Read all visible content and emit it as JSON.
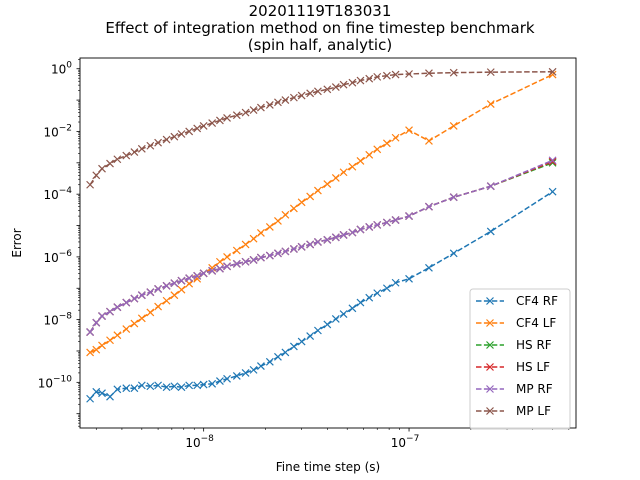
{
  "chart_data": {
    "type": "line",
    "title_lines": [
      "20201119T183031",
      "Effect of integration method on fine timestep benchmark",
      "(spin half, analytic)"
    ],
    "xlabel": "Fine time step (s)",
    "ylabel": "Error",
    "xscale": "log",
    "yscale": "log",
    "xlim": [
      2.5e-09,
      6.5e-07
    ],
    "ylim": [
      3.5e-12,
      2.2
    ],
    "x_major_ticks": [
      {
        "value": 1e-08,
        "base": "10",
        "exp": "−8"
      },
      {
        "value": 1e-07,
        "base": "10",
        "exp": "−7"
      }
    ],
    "y_major_ticks": [
      {
        "value": 1e-10,
        "base": "10",
        "exp": "−10"
      },
      {
        "value": 1e-08,
        "base": "10",
        "exp": "−8"
      },
      {
        "value": 1e-06,
        "base": "10",
        "exp": "−6"
      },
      {
        "value": 0.0001,
        "base": "10",
        "exp": "−4"
      },
      {
        "value": 0.01,
        "base": "10",
        "exp": "−2"
      },
      {
        "value": 1,
        "base": "10",
        "exp": "0"
      }
    ],
    "legend_position": "lower-right",
    "grid": false,
    "x": [
      2.8e-09,
      3e-09,
      3.2e-09,
      3.5e-09,
      3.8e-09,
      4.2e-09,
      4.6e-09,
      5e-09,
      5.5e-09,
      6e-09,
      6.6e-09,
      7.2e-09,
      7.8e-09,
      8.5e-09,
      9.3e-09,
      1e-08,
      1.1e-08,
      1.2e-08,
      1.3e-08,
      1.45e-08,
      1.6e-08,
      1.75e-08,
      1.9e-08,
      2.1e-08,
      2.3e-08,
      2.5e-08,
      2.75e-08,
      3e-08,
      3.3e-08,
      3.6e-08,
      4e-08,
      4.4e-08,
      4.8e-08,
      5.3e-08,
      5.8e-08,
      6.4e-08,
      7e-08,
      7.8e-08,
      8.6e-08,
      1e-07,
      1.25e-07,
      1.65e-07,
      2.5e-07,
      5e-07
    ],
    "series": [
      {
        "name": "CF4 RF",
        "color": "#1f77b4",
        "values": [
          3e-11,
          5e-11,
          4.5e-11,
          3.5e-11,
          6e-11,
          6.5e-11,
          6.5e-11,
          8e-11,
          7.5e-11,
          8e-11,
          7e-11,
          7.5e-11,
          7e-11,
          8e-11,
          8e-11,
          8.5e-11,
          9e-11,
          1.1e-10,
          1.3e-10,
          1.6e-10,
          2e-10,
          2.5e-10,
          3.3e-10,
          4.5e-10,
          6.5e-10,
          9e-10,
          1.4e-09,
          2e-09,
          3e-09,
          4.5e-09,
          7e-09,
          1.05e-08,
          1.5e-08,
          2.3e-08,
          3.5e-08,
          5e-08,
          7e-08,
          1e-07,
          1.5e-07,
          2e-07,
          4.5e-07,
          1.3e-06,
          6.5e-06,
          0.00012
        ]
      },
      {
        "name": "CF4 LF",
        "color": "#ff7f0e",
        "values": [
          9e-10,
          1.1e-09,
          1.5e-09,
          2.2e-09,
          3.2e-09,
          5e-09,
          7.5e-09,
          1.1e-08,
          1.7e-08,
          2.6e-08,
          4e-08,
          6e-08,
          9e-08,
          1.4e-07,
          2e-07,
          3e-07,
          4.5e-07,
          7e-07,
          1e-06,
          1.6e-06,
          2.5e-06,
          3.8e-06,
          5.8e-06,
          9e-06,
          1.4e-05,
          2.2e-05,
          3.5e-05,
          5.5e-05,
          8.5e-05,
          0.00013,
          0.00021,
          0.00033,
          0.0005,
          0.00075,
          0.00115,
          0.0018,
          0.0027,
          0.0042,
          0.0063,
          0.011,
          0.005,
          0.015,
          0.075,
          0.65
        ]
      },
      {
        "name": "HS RF",
        "color": "#2ca02c",
        "values": [
          4e-09,
          8e-09,
          1.3e-08,
          1.8e-08,
          2.5e-08,
          3.5e-08,
          4.7e-08,
          6e-08,
          7.5e-08,
          9.5e-08,
          1.2e-07,
          1.45e-07,
          1.75e-07,
          2.1e-07,
          2.5e-07,
          3e-07,
          3.6e-07,
          4.2e-07,
          5e-07,
          6e-07,
          7e-07,
          8e-07,
          9.5e-07,
          1.1e-06,
          1.3e-06,
          1.5e-06,
          1.8e-06,
          2.1e-06,
          2.5e-06,
          3e-06,
          3.5e-06,
          4.2e-06,
          5e-06,
          6e-06,
          7.5e-06,
          9e-06,
          1.05e-05,
          1.25e-05,
          1.5e-05,
          2e-05,
          4e-05,
          8e-05,
          0.00018,
          0.001
        ]
      },
      {
        "name": "HS LF",
        "color": "#d62728",
        "values": [
          4e-09,
          8e-09,
          1.3e-08,
          1.8e-08,
          2.5e-08,
          3.5e-08,
          4.7e-08,
          6e-08,
          7.5e-08,
          9.5e-08,
          1.2e-07,
          1.45e-07,
          1.75e-07,
          2.1e-07,
          2.5e-07,
          3e-07,
          3.6e-07,
          4.2e-07,
          5e-07,
          6e-07,
          7e-07,
          8e-07,
          9.5e-07,
          1.1e-06,
          1.3e-06,
          1.5e-06,
          1.8e-06,
          2.1e-06,
          2.5e-06,
          3e-06,
          3.5e-06,
          4.2e-06,
          5e-06,
          6e-06,
          7.5e-06,
          9e-06,
          1.05e-05,
          1.25e-05,
          1.5e-05,
          2e-05,
          4e-05,
          8e-05,
          0.00018,
          0.0011
        ]
      },
      {
        "name": "MP RF",
        "color": "#9467bd",
        "values": [
          4e-09,
          8e-09,
          1.3e-08,
          1.8e-08,
          2.5e-08,
          3.5e-08,
          4.7e-08,
          6e-08,
          7.5e-08,
          9.5e-08,
          1.2e-07,
          1.45e-07,
          1.75e-07,
          2.1e-07,
          2.5e-07,
          3e-07,
          3.6e-07,
          4.2e-07,
          5e-07,
          6e-07,
          7e-07,
          8e-07,
          9.5e-07,
          1.1e-06,
          1.3e-06,
          1.5e-06,
          1.8e-06,
          2.1e-06,
          2.5e-06,
          3e-06,
          3.5e-06,
          4.2e-06,
          5e-06,
          6e-06,
          7.5e-06,
          9e-06,
          1.05e-05,
          1.25e-05,
          1.5e-05,
          2e-05,
          4e-05,
          8e-05,
          0.00018,
          0.0012
        ]
      },
      {
        "name": "MP LF",
        "color": "#8c564b",
        "values": [
          0.0002,
          0.0004,
          0.00065,
          0.00095,
          0.0013,
          0.0017,
          0.0022,
          0.0028,
          0.0035,
          0.0044,
          0.0055,
          0.0068,
          0.0083,
          0.01,
          0.0125,
          0.015,
          0.0185,
          0.0225,
          0.027,
          0.033,
          0.04,
          0.048,
          0.058,
          0.07,
          0.085,
          0.1,
          0.12,
          0.14,
          0.165,
          0.19,
          0.22,
          0.26,
          0.31,
          0.36,
          0.42,
          0.48,
          0.55,
          0.6,
          0.65,
          0.68,
          0.72,
          0.75,
          0.78,
          0.8
        ]
      }
    ]
  }
}
